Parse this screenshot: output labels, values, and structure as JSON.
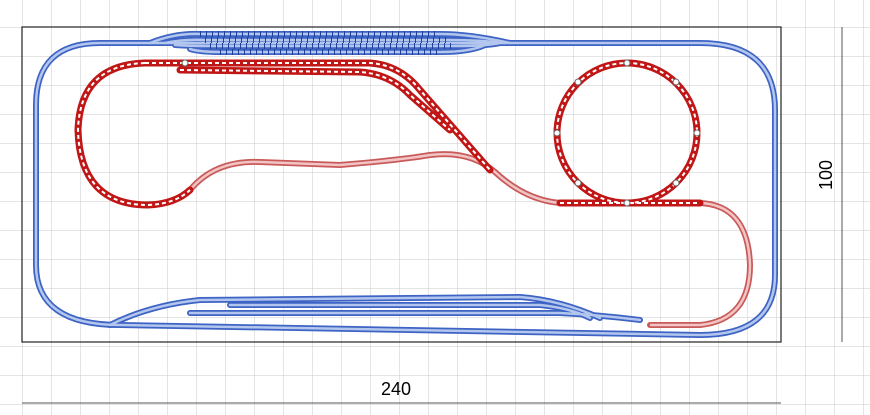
{
  "dimensions": {
    "width": 240,
    "height": 100
  }
}
